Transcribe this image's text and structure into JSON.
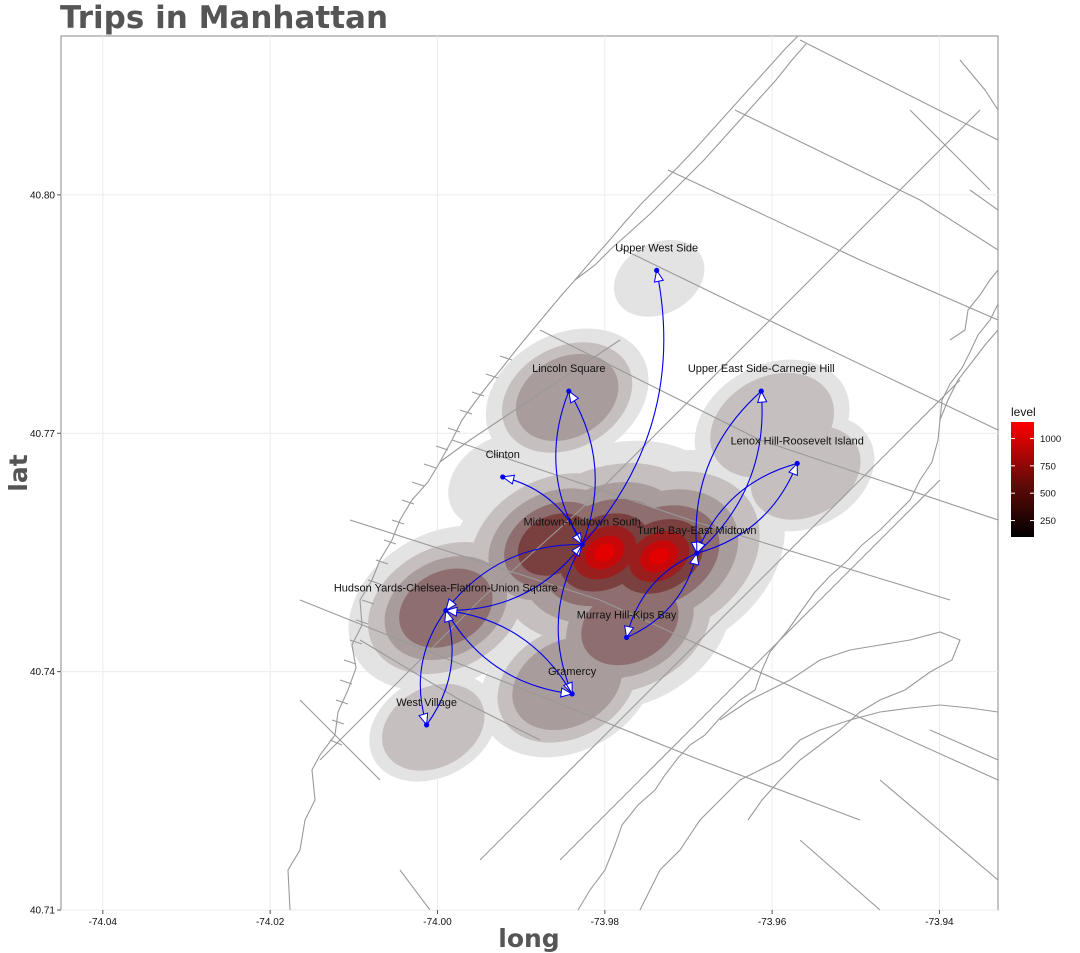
{
  "chart_data": {
    "type": "map",
    "title": "Trips in Manhattan",
    "xlabel": "long",
    "ylabel": "lat",
    "xlim": [
      -74.045,
      -73.933
    ],
    "ylim": [
      40.71,
      40.82
    ],
    "x_ticks": [
      -74.04,
      -74.02,
      -74.0,
      -73.98,
      -73.96,
      -73.94
    ],
    "x_tick_labels": [
      "-74.04",
      "-74.02",
      "-74.00",
      "-73.98",
      "-73.96",
      "-73.94"
    ],
    "y_ticks": [
      40.71,
      40.74,
      40.77,
      40.8
    ],
    "y_tick_labels": [
      "40.71",
      "40.74",
      "40.77",
      "40.80"
    ],
    "grid": true,
    "legend": {
      "title": "level",
      "position": "right",
      "range": [
        100,
        1150
      ],
      "ticks": [
        250,
        500,
        750,
        1000
      ],
      "tick_labels": [
        "250",
        "500",
        "750",
        "1000"
      ],
      "color_low": "#000000",
      "color_high": "#ff0000"
    },
    "colors": {
      "route": "#0000ee",
      "point": "#0000ee",
      "basemap_line": "#9a9a9a",
      "density_low": "#e1e1e1",
      "density_high": "#e00000"
    },
    "locations": [
      {
        "name": "Upper West Side",
        "long": -73.9738,
        "lat": 40.7905
      },
      {
        "name": "Lincoln Square",
        "long": -73.9843,
        "lat": 40.7753
      },
      {
        "name": "Upper East Side-Carnegie Hill",
        "long": -73.9613,
        "lat": 40.7753
      },
      {
        "name": "Lenox Hill-Roosevelt Island",
        "long": -73.957,
        "lat": 40.7662
      },
      {
        "name": "Clinton",
        "long": -73.9922,
        "lat": 40.7645
      },
      {
        "name": "Midtown-Midtown South",
        "long": -73.9827,
        "lat": 40.756
      },
      {
        "name": "Turtle Bay-East Midtown",
        "long": -73.969,
        "lat": 40.7549
      },
      {
        "name": "Hudson Yards-Chelsea-Flatiron-Union Square",
        "long": -73.999,
        "lat": 40.7477
      },
      {
        "name": "Murray Hill-Kips Bay",
        "long": -73.9774,
        "lat": 40.7443
      },
      {
        "name": "Gramercy",
        "long": -73.9839,
        "lat": 40.7372
      },
      {
        "name": "West Village",
        "long": -74.0013,
        "lat": 40.7333
      }
    ],
    "routes": [
      [
        "Midtown-Midtown South",
        "Upper West Side"
      ],
      [
        "Midtown-Midtown South",
        "Lincoln Square"
      ],
      [
        "Lincoln Square",
        "Midtown-Midtown South"
      ],
      [
        "Midtown-Midtown South",
        "Clinton"
      ],
      [
        "Midtown-Midtown South",
        "Hudson Yards-Chelsea-Flatiron-Union Square"
      ],
      [
        "Hudson Yards-Chelsea-Flatiron-Union Square",
        "Midtown-Midtown South"
      ],
      [
        "Midtown-Midtown South",
        "Gramercy"
      ],
      [
        "Hudson Yards-Chelsea-Flatiron-Union Square",
        "Gramercy"
      ],
      [
        "Gramercy",
        "Hudson Yards-Chelsea-Flatiron-Union Square"
      ],
      [
        "Hudson Yards-Chelsea-Flatiron-Union Square",
        "West Village"
      ],
      [
        "West Village",
        "Hudson Yards-Chelsea-Flatiron-Union Square"
      ],
      [
        "Turtle Bay-East Midtown",
        "Upper East Side-Carnegie Hill"
      ],
      [
        "Upper East Side-Carnegie Hill",
        "Turtle Bay-East Midtown"
      ],
      [
        "Turtle Bay-East Midtown",
        "Lenox Hill-Roosevelt Island"
      ],
      [
        "Lenox Hill-Roosevelt Island",
        "Turtle Bay-East Midtown"
      ],
      [
        "Turtle Bay-East Midtown",
        "Murray Hill-Kips Bay"
      ],
      [
        "Murray Hill-Kips Bay",
        "Turtle Bay-East Midtown"
      ]
    ],
    "density": [
      {
        "long": -73.98,
        "lat": 40.755,
        "level": 1100
      },
      {
        "long": -73.9735,
        "lat": 40.7545,
        "level": 1000
      },
      {
        "long": -73.986,
        "lat": 40.756,
        "level": 700
      },
      {
        "long": -73.977,
        "lat": 40.746,
        "level": 650
      },
      {
        "long": -73.999,
        "lat": 40.748,
        "level": 600
      },
      {
        "long": -73.9845,
        "lat": 40.7385,
        "level": 480
      },
      {
        "long": -73.9845,
        "lat": 40.7745,
        "level": 420
      },
      {
        "long": -73.96,
        "lat": 40.771,
        "level": 380
      },
      {
        "long": -73.956,
        "lat": 40.765,
        "level": 300
      },
      {
        "long": -74.0005,
        "lat": 40.733,
        "level": 260
      },
      {
        "long": -73.9735,
        "lat": 40.7895,
        "level": 130
      },
      {
        "long": -73.992,
        "lat": 40.764,
        "level": 200
      }
    ]
  }
}
